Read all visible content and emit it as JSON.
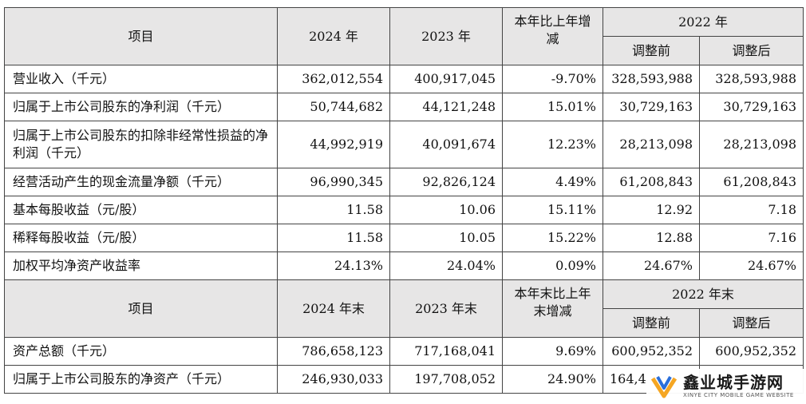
{
  "header1": {
    "item": "项目",
    "y2024": "2024 年",
    "y2023": "2023 年",
    "change": "本年比上年增减",
    "y2022": "2022 年",
    "before": "调整前",
    "after": "调整后"
  },
  "rows1": [
    {
      "label": "营业收入（千元）",
      "v2024": "362,012,554",
      "v2023": "400,917,045",
      "chg": "-9.70%",
      "before": "328,593,988",
      "after": "328,593,988"
    },
    {
      "label": "归属于上市公司股东的净利润（千元）",
      "v2024": "50,744,682",
      "v2023": "44,121,248",
      "chg": "15.01%",
      "before": "30,729,163",
      "after": "30,729,163"
    },
    {
      "label": "归属于上市公司股东的扣除非经常性损益的净利润（千元）",
      "v2024": "44,992,919",
      "v2023": "40,091,674",
      "chg": "12.23%",
      "before": "28,213,098",
      "after": "28,213,098"
    },
    {
      "label": "经营活动产生的现金流量净额（千元）",
      "v2024": "96,990,345",
      "v2023": "92,826,124",
      "chg": "4.49%",
      "before": "61,208,843",
      "after": "61,208,843"
    },
    {
      "label": "基本每股收益（元/股）",
      "v2024": "11.58",
      "v2023": "10.06",
      "chg": "15.11%",
      "before": "12.92",
      "after": "7.18"
    },
    {
      "label": "稀释每股收益（元/股）",
      "v2024": "11.58",
      "v2023": "10.05",
      "chg": "15.22%",
      "before": "12.88",
      "after": "7.16"
    },
    {
      "label": "加权平均净资产收益率",
      "v2024": "24.13%",
      "v2023": "24.04%",
      "chg": "0.09%",
      "before": "24.67%",
      "after": "24.67%"
    }
  ],
  "header2": {
    "item": "项目",
    "y2024": "2024 年末",
    "y2023": "2023 年末",
    "change": "本年末比上年末增减",
    "y2022": "2022 年末",
    "before": "调整前",
    "after": "调整后"
  },
  "rows2": [
    {
      "label": "资产总额（千元）",
      "v2024": "786,658,123",
      "v2023": "717,168,041",
      "chg": "9.69%",
      "before": "600,952,352",
      "after": "600,952,352"
    },
    {
      "label": "归属于上市公司股东的净资产（千元）",
      "v2024": "246,930,033",
      "v2023": "197,708,052",
      "chg": "24.90%",
      "before": "164,4",
      "after": ""
    }
  ],
  "watermark": {
    "title": "鑫业城手游网",
    "subtitle": "XINYE CITY MOBILE GAME WEBSITE"
  }
}
